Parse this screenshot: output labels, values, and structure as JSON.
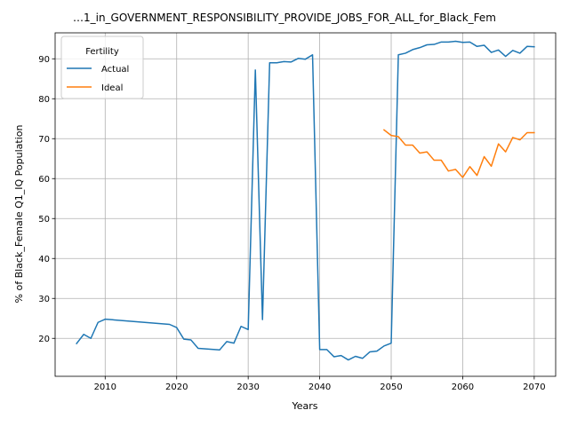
{
  "chart_data": {
    "type": "line",
    "title": "…1_in_GOVERNMENT_RESPONSIBILITY_PROVIDE_JOBS_FOR_ALL_for_Black_Fem",
    "xlabel": "Years",
    "ylabel": "% of Black_Female Q1_IQ Population",
    "xlim": [
      2003,
      2073
    ],
    "ylim": [
      10.5,
      96.5
    ],
    "xticks": [
      2010,
      2020,
      2030,
      2040,
      2050,
      2060,
      2070
    ],
    "yticks": [
      20,
      30,
      40,
      50,
      60,
      70,
      80,
      90
    ],
    "grid": true,
    "legend": {
      "title": "Fertility",
      "placement": "top-left"
    },
    "series": [
      {
        "name": "Actual",
        "color": "#1f77b4",
        "x": [
          2006,
          2007,
          2008,
          2009,
          2010,
          2019,
          2020,
          2021,
          2022,
          2023,
          2026,
          2027,
          2028,
          2029,
          2030,
          2031,
          2032,
          2033,
          2034,
          2035,
          2036,
          2037,
          2038,
          2039,
          2040,
          2041,
          2042,
          2043,
          2044,
          2045,
          2046,
          2047,
          2048,
          2049,
          2050,
          2051,
          2052,
          2053,
          2054,
          2055,
          2056,
          2057,
          2058,
          2059,
          2060,
          2061,
          2062,
          2063,
          2064,
          2065,
          2066,
          2067,
          2068,
          2069,
          2070
        ],
        "y": [
          18.7,
          21.0,
          20.0,
          24.0,
          24.8,
          23.5,
          22.7,
          19.8,
          19.6,
          17.5,
          17.1,
          19.2,
          18.8,
          23.0,
          22.2,
          87.2,
          24.7,
          89.0,
          89.0,
          89.3,
          89.2,
          90.1,
          89.9,
          91.0,
          17.2,
          17.2,
          15.4,
          15.7,
          14.6,
          15.5,
          15.0,
          16.6,
          16.8,
          18.1,
          18.8,
          91.0,
          91.4,
          92.3,
          92.8,
          93.5,
          93.6,
          94.2,
          94.2,
          94.4,
          94.1,
          94.2,
          93.1,
          93.4,
          91.6,
          92.2,
          90.6,
          92.1,
          91.4,
          93.1,
          93.0
        ]
      },
      {
        "name": "Ideal",
        "color": "#ff7f0e",
        "x": [
          2049,
          2050,
          2051,
          2052,
          2053,
          2054,
          2055,
          2056,
          2057,
          2058,
          2059,
          2060,
          2061,
          2062,
          2063,
          2064,
          2065,
          2066,
          2067,
          2068,
          2069,
          2070
        ],
        "y": [
          72.2,
          70.8,
          70.5,
          68.4,
          68.4,
          66.4,
          66.7,
          64.6,
          64.6,
          61.9,
          62.3,
          60.3,
          63.0,
          60.8,
          65.5,
          63.1,
          68.7,
          66.7,
          70.3,
          69.7,
          71.5,
          71.5
        ]
      }
    ]
  }
}
